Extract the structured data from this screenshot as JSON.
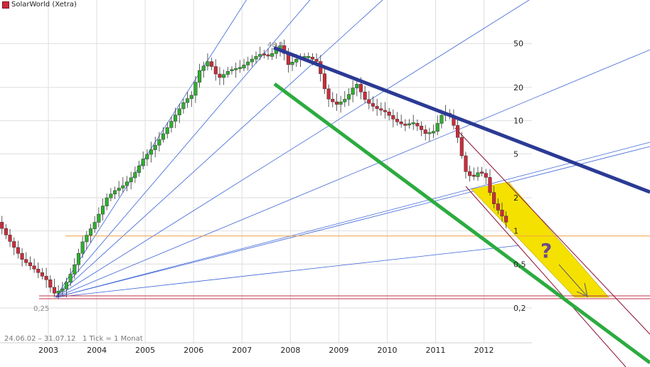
{
  "title": "SolarWorld (Xetra)",
  "info": {
    "range": "24.06.02 – 31.07.12",
    "resolution": "1 Tick = 1 Monat"
  },
  "colors": {
    "up": "#2fae2f",
    "down": "#cc2b3a",
    "grid": "#dedede",
    "fan": "#3a63d8",
    "resistance": "#2b3a95",
    "support": "#2cab3f",
    "channel": "#8a1030",
    "highlight": "#f5e100",
    "hline_upper": "#f0a040",
    "hline_lower": "#c0304a"
  },
  "chart_data": {
    "type": "candlestick",
    "y_scale": "log",
    "ylim": [
      0.13,
      95
    ],
    "xlim": [
      2002.0,
      2012.55
    ],
    "x_ticks": [
      "2003",
      "2004",
      "2005",
      "2006",
      "2007",
      "2008",
      "2009",
      "2010",
      "2011",
      "2012"
    ],
    "y_ticks": [
      {
        "value": 50,
        "label": "50"
      },
      {
        "value": 20,
        "label": "20"
      },
      {
        "value": 10,
        "label": "10"
      },
      {
        "value": 5,
        "label": "5"
      },
      {
        "value": 2,
        "label": "2"
      },
      {
        "value": 1,
        "label": "1"
      },
      {
        "value": 0.5,
        "label": "0,5"
      },
      {
        "value": 0.2,
        "label": "0,2"
      }
    ],
    "annotations": [
      {
        "text": "48,8",
        "x": 2007.85,
        "y": 48.8
      },
      {
        "text": "0,25",
        "x": 2003.12,
        "y": 0.25
      },
      {
        "text": "?",
        "x": 2013.2,
        "y": 0.9
      }
    ],
    "series": [
      {
        "kind": "monthly_price",
        "points": [
          [
            2002.0,
            1.2
          ],
          [
            2002.25,
            0.8
          ],
          [
            2002.5,
            0.55
          ],
          [
            2002.75,
            0.45
          ],
          [
            2003.0,
            0.36
          ],
          [
            2003.15,
            0.27
          ],
          [
            2003.35,
            0.3
          ],
          [
            2003.55,
            0.45
          ],
          [
            2003.75,
            0.8
          ],
          [
            2004.0,
            1.2
          ],
          [
            2004.25,
            2.0
          ],
          [
            2004.4,
            2.3
          ],
          [
            2004.6,
            2.6
          ],
          [
            2004.8,
            3.2
          ],
          [
            2005.0,
            4.5
          ],
          [
            2005.25,
            6.0
          ],
          [
            2005.45,
            8.0
          ],
          [
            2005.65,
            11.0
          ],
          [
            2005.85,
            15.0
          ],
          [
            2006.0,
            17.0
          ],
          [
            2006.15,
            28.0
          ],
          [
            2006.35,
            35.0
          ],
          [
            2006.55,
            24.0
          ],
          [
            2006.75,
            28.0
          ],
          [
            2007.0,
            30.0
          ],
          [
            2007.2,
            35.0
          ],
          [
            2007.4,
            40.0
          ],
          [
            2007.6,
            38.0
          ],
          [
            2007.85,
            48.8
          ],
          [
            2008.0,
            32.0
          ],
          [
            2008.2,
            37.0
          ],
          [
            2008.4,
            38.0
          ],
          [
            2008.6,
            34.0
          ],
          [
            2008.8,
            16.0
          ],
          [
            2009.0,
            14.0
          ],
          [
            2009.2,
            16.0
          ],
          [
            2009.4,
            22.0
          ],
          [
            2009.6,
            15.0
          ],
          [
            2009.8,
            13.0
          ],
          [
            2010.0,
            12.0
          ],
          [
            2010.2,
            10.0
          ],
          [
            2010.4,
            9.0
          ],
          [
            2010.6,
            9.5
          ],
          [
            2010.85,
            7.5
          ],
          [
            2011.0,
            8.0
          ],
          [
            2011.2,
            12.0
          ],
          [
            2011.35,
            11.0
          ],
          [
            2011.5,
            7.0
          ],
          [
            2011.65,
            3.5
          ],
          [
            2011.8,
            3.0
          ],
          [
            2011.95,
            3.5
          ],
          [
            2012.1,
            3.0
          ],
          [
            2012.2,
            1.9
          ],
          [
            2012.35,
            1.5
          ],
          [
            2012.5,
            1.2
          ]
        ]
      }
    ],
    "trendlines": [
      {
        "name": "resistance",
        "from": [
          2007.85,
          48.8
        ],
        "to": [
          2012.5,
          3.1
        ]
      },
      {
        "name": "support",
        "from": [
          2007.85,
          26.0
        ],
        "to": [
          2012.55,
          0.12
        ]
      },
      {
        "name": "horizontal_upper",
        "y": 0.9
      },
      {
        "name": "horizontal_lower",
        "y": 0.25
      }
    ]
  }
}
